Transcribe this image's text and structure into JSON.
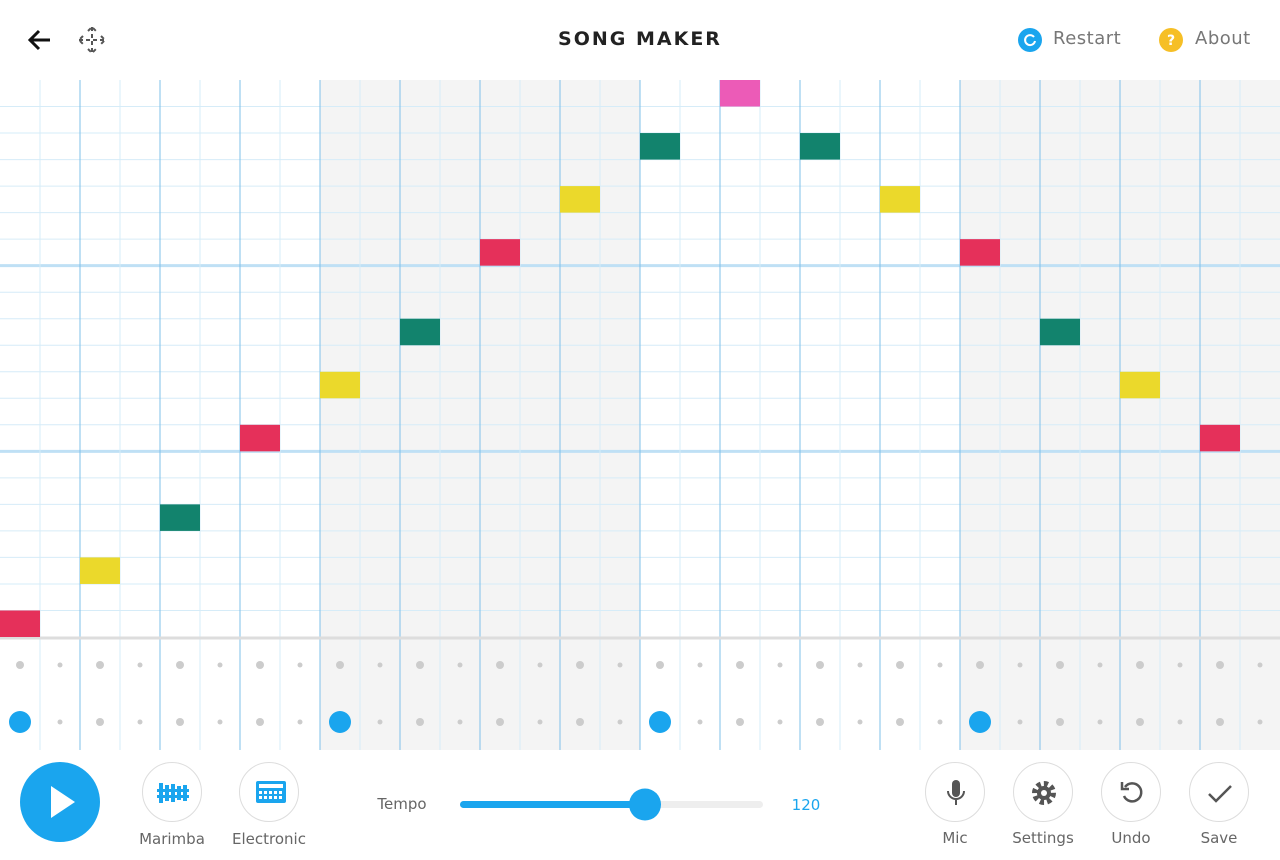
{
  "header": {
    "title": "SONG MAKER",
    "restart": "Restart",
    "about": "About"
  },
  "grid": {
    "steps": 32,
    "pitches": 21,
    "notes": [
      {
        "step": 0,
        "pitch": 20,
        "color": "#e5305a"
      },
      {
        "step": 2,
        "pitch": 18,
        "color": "#ebd92b"
      },
      {
        "step": 4,
        "pitch": 16,
        "color": "#12836d"
      },
      {
        "step": 6,
        "pitch": 13,
        "color": "#e5305a"
      },
      {
        "step": 8,
        "pitch": 11,
        "color": "#ebd92b"
      },
      {
        "step": 10,
        "pitch": 9,
        "color": "#12836d"
      },
      {
        "step": 12,
        "pitch": 6,
        "color": "#e5305a"
      },
      {
        "step": 14,
        "pitch": 4,
        "color": "#ebd92b"
      },
      {
        "step": 16,
        "pitch": 2,
        "color": "#12836d"
      },
      {
        "step": 18,
        "pitch": 0,
        "color": "#ec5bb7"
      },
      {
        "step": 20,
        "pitch": 2,
        "color": "#12836d"
      },
      {
        "step": 22,
        "pitch": 4,
        "color": "#ebd92b"
      },
      {
        "step": 24,
        "pitch": 6,
        "color": "#e5305a"
      },
      {
        "step": 26,
        "pitch": 9,
        "color": "#12836d"
      },
      {
        "step": 28,
        "pitch": 11,
        "color": "#ebd92b"
      },
      {
        "step": 30,
        "pitch": 13,
        "color": "#e5305a"
      }
    ],
    "rhythm_hits": [
      0,
      8,
      16,
      24
    ]
  },
  "controls": {
    "instruments": [
      "Marimba",
      "Electronic"
    ],
    "tempo_label": "Tempo",
    "tempo": 120,
    "buttons": [
      "Mic",
      "Settings",
      "Undo",
      "Save"
    ]
  }
}
